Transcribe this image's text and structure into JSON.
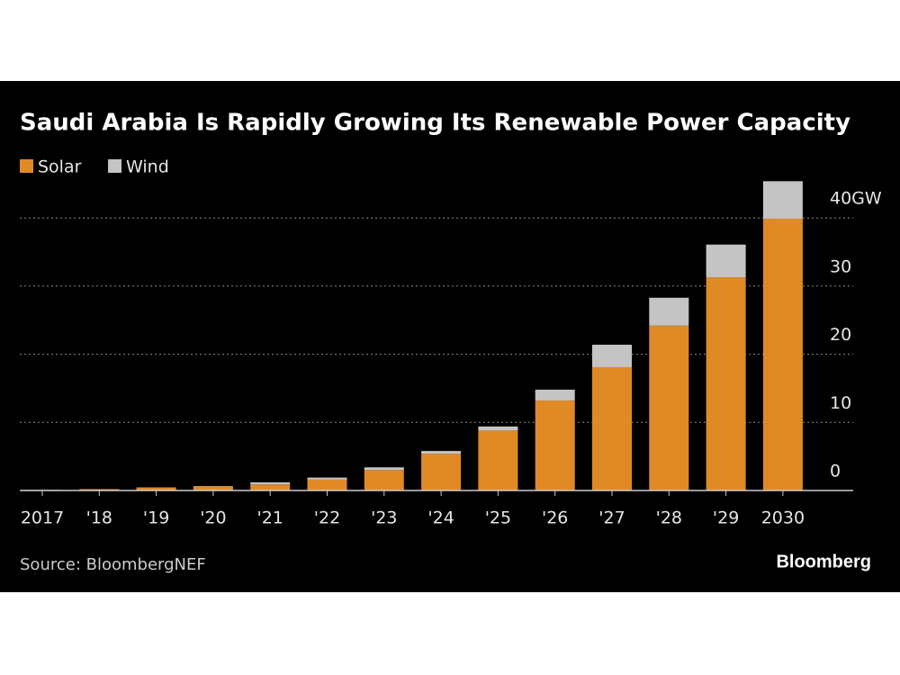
{
  "chart_data": {
    "type": "bar",
    "stacked": true,
    "title": "Saudi Arabia Is Rapidly Growing Its Renewable Power Capacity",
    "source": "Source: BloombergNEF",
    "brand": "Bloomberg",
    "categories": [
      "2017",
      "'18",
      "'19",
      "'20",
      "'21",
      "'22",
      "'23",
      "'24",
      "'25",
      "'26",
      "'27",
      "'28",
      "'29",
      "2030"
    ],
    "series": [
      {
        "name": "Solar",
        "color": "#e08a26",
        "values": [
          0.1,
          0.2,
          0.4,
          0.6,
          0.9,
          1.6,
          3.0,
          5.4,
          8.8,
          13.2,
          18.1,
          24.2,
          31.3,
          39.9
        ]
      },
      {
        "name": "Wind",
        "color": "#c4c4c4",
        "values": [
          0,
          0,
          0.05,
          0.05,
          0.3,
          0.3,
          0.4,
          0.4,
          0.6,
          1.6,
          3.3,
          4.1,
          4.8,
          5.5
        ]
      }
    ],
    "ylim": [
      0,
      46
    ],
    "yticks": [
      0,
      10,
      20,
      30,
      {
        "value": 40,
        "label": "40GW"
      }
    ],
    "grid": true
  }
}
